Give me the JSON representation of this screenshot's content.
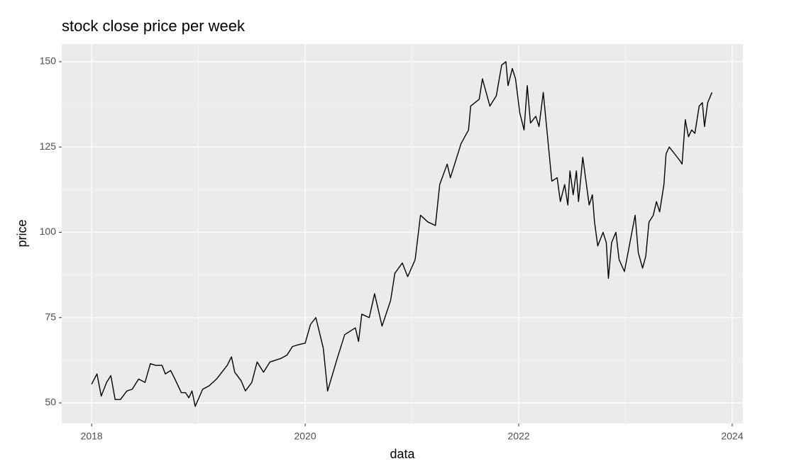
{
  "chart_data": {
    "type": "line",
    "title": "stock close price per week",
    "x_label": "data",
    "y_label": "price",
    "x": [
      2018.0,
      2018.05,
      2018.09,
      2018.14,
      2018.18,
      2018.22,
      2018.27,
      2018.33,
      2018.38,
      2018.44,
      2018.5,
      2018.55,
      2018.6,
      2018.66,
      2018.69,
      2018.74,
      2018.78,
      2018.84,
      2018.88,
      2018.91,
      2018.94,
      2018.97,
      2019.04,
      2019.1,
      2019.17,
      2019.22,
      2019.27,
      2019.31,
      2019.34,
      2019.4,
      2019.44,
      2019.5,
      2019.55,
      2019.61,
      2019.67,
      2019.77,
      2019.83,
      2019.88,
      2019.93,
      2020.0,
      2020.05,
      2020.1,
      2020.17,
      2020.21,
      2020.3,
      2020.37,
      2020.47,
      2020.5,
      2020.53,
      2020.6,
      2020.65,
      2020.72,
      2020.8,
      2020.84,
      2020.91,
      2020.96,
      2021.03,
      2021.08,
      2021.15,
      2021.22,
      2021.26,
      2021.33,
      2021.36,
      2021.46,
      2021.53,
      2021.55,
      2021.63,
      2021.66,
      2021.73,
      2021.79,
      2021.84,
      2021.88,
      2021.9,
      2021.94,
      2021.97,
      2022.01,
      2022.05,
      2022.08,
      2022.11,
      2022.16,
      2022.19,
      2022.23,
      2022.31,
      2022.36,
      2022.39,
      2022.43,
      2022.46,
      2022.48,
      2022.51,
      2022.54,
      2022.56,
      2022.6,
      2022.66,
      2022.69,
      2022.71,
      2022.74,
      2022.79,
      2022.82,
      2022.84,
      2022.87,
      2022.91,
      2022.94,
      2022.99,
      2023.06,
      2023.09,
      2023.12,
      2023.16,
      2023.19,
      2023.22,
      2023.26,
      2023.29,
      2023.32,
      2023.36,
      2023.38,
      2023.41,
      2023.46,
      2023.51,
      2023.53,
      2023.56,
      2023.59,
      2023.62,
      2023.65,
      2023.69,
      2023.72,
      2023.74,
      2023.77,
      2023.81
    ],
    "series": [
      {
        "name": "price",
        "color": "#000000",
        "values": [
          55.5,
          58.5,
          52,
          56,
          58,
          51,
          51,
          53.5,
          54,
          57,
          56,
          61.5,
          61,
          61,
          58.5,
          59.5,
          57,
          53,
          53,
          51.5,
          53.5,
          49,
          54,
          55,
          57,
          59,
          61,
          63.5,
          59,
          56.5,
          53.5,
          56,
          62,
          59,
          62,
          63,
          64,
          66.5,
          67,
          67.5,
          73,
          75,
          66,
          53.5,
          63,
          70,
          72,
          68,
          76,
          75,
          82,
          72.5,
          80,
          88,
          91,
          87,
          92,
          105,
          103,
          102,
          114,
          120,
          116,
          126,
          130,
          137,
          139,
          145,
          137,
          140,
          149,
          150,
          143,
          148,
          145,
          135,
          130,
          143,
          132,
          134,
          131,
          141,
          115,
          116,
          109,
          114,
          108,
          118,
          111,
          118,
          109,
          122,
          108,
          111,
          103,
          96,
          100,
          97,
          86.5,
          97,
          100,
          92,
          88.5,
          100,
          105,
          94,
          89.5,
          93,
          103,
          105,
          109,
          106,
          114,
          123,
          125,
          123,
          121,
          120,
          133,
          128,
          130,
          129,
          137,
          138,
          131,
          138,
          141
        ]
      }
    ],
    "xlim": [
      2017.72,
      2024.1
    ],
    "xticks": [
      2018,
      2020,
      2022,
      2024
    ],
    "xminor": [
      2019,
      2021,
      2023
    ],
    "ylim": [
      43.97,
      155.2
    ],
    "yticks": [
      50,
      75,
      100,
      125,
      150
    ],
    "yminor": [
      62.5,
      87.5,
      112.5,
      137.5
    ],
    "grid": true
  }
}
